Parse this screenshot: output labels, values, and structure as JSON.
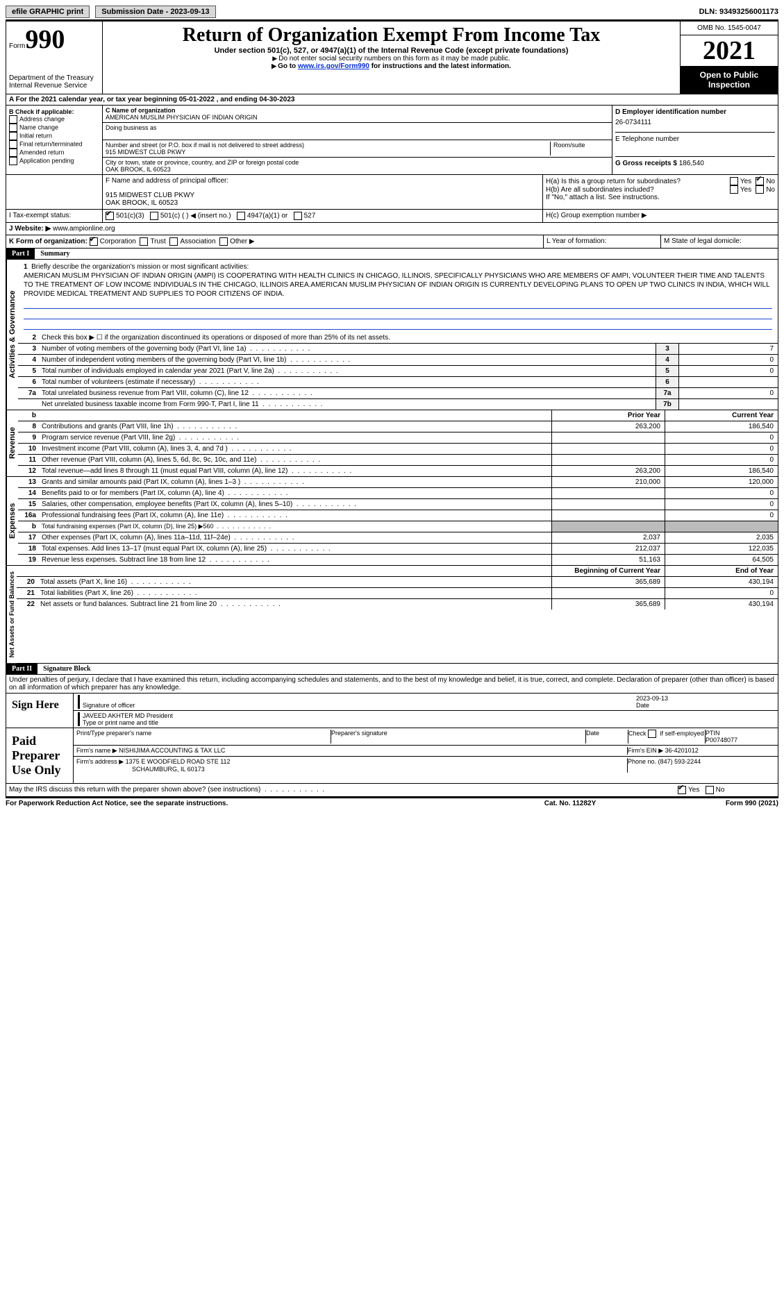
{
  "topbar": {
    "efile": "efile GRAPHIC print",
    "submission": "Submission Date - 2023-09-13",
    "dln": "DLN: 93493256001173"
  },
  "header": {
    "form_prefix": "Form",
    "form_num": "990",
    "dept": "Department of the Treasury\nInternal Revenue Service",
    "title": "Return of Organization Exempt From Income Tax",
    "subtitle": "Under section 501(c), 527, or 4947(a)(1) of the Internal Revenue Code (except private foundations)",
    "note1": "Do not enter social security numbers on this form as it may be made public.",
    "note2_pre": "Go to ",
    "note2_link": "www.irs.gov/Form990",
    "note2_post": " for instructions and the latest information.",
    "omb": "OMB No. 1545-0047",
    "year": "2021",
    "inspect": "Open to Public Inspection"
  },
  "row_a": "For the 2021 calendar year, or tax year beginning 05-01-2022    , and ending 04-30-2023",
  "box_b": {
    "label": "B Check if applicable:",
    "items": [
      "Address change",
      "Name change",
      "Initial return",
      "Final return/terminated",
      "Amended return",
      "Application pending"
    ]
  },
  "box_c": {
    "name_label": "C Name of organization",
    "name": "AMERICAN MUSLIM PHYSICIAN OF INDIAN ORIGIN",
    "dba_label": "Doing business as",
    "street_label": "Number and street (or P.O. box if mail is not delivered to street address)",
    "street": "915 MIDWEST CLUB PKWY",
    "room_label": "Room/suite",
    "city_label": "City or town, state or province, country, and ZIP or foreign postal code",
    "city": "OAK BROOK, IL  60523"
  },
  "box_d": {
    "label": "D Employer identification number",
    "value": "26-0734111"
  },
  "box_e": {
    "label": "E Telephone number"
  },
  "box_g": {
    "label": "G Gross receipts $",
    "value": "186,540"
  },
  "box_f": {
    "label": "F  Name and address of principal officer:",
    "line1": "915 MIDWEST CLUB PKWY",
    "line2": "OAK BROOK, IL  60523"
  },
  "box_h": {
    "ha": "H(a)  Is this a group return for subordinates?",
    "hb": "H(b)  Are all subordinates included?",
    "hb_note": "If \"No,\" attach a list. See instructions.",
    "hc": "H(c)  Group exemption number ▶",
    "yes": "Yes",
    "no": "No"
  },
  "row_i": {
    "label": "I   Tax-exempt status:",
    "opts": [
      "501(c)(3)",
      "501(c) (  ) ◀ (insert no.)",
      "4947(a)(1) or",
      "527"
    ]
  },
  "row_j": {
    "label": "J   Website: ▶",
    "value": "www.ampionline.org"
  },
  "row_k": {
    "label": "K Form of organization:",
    "opts": [
      "Corporation",
      "Trust",
      "Association",
      "Other ▶"
    ]
  },
  "row_l": "L Year of formation:",
  "row_m": "M State of legal domicile:",
  "part1": {
    "num": "Part I",
    "title": "Summary"
  },
  "line1": {
    "num": "1",
    "label": "Briefly describe the organization's mission or most significant activities:",
    "text": "AMERICAN MUSLIM PHYSICIAN OF INDIAN ORIGIN (AMPI) IS COOPERATING WITH HEALTH CLINICS IN CHICAGO, ILLINOIS, SPECIFICALLY PHYSICIANS WHO ARE MEMBERS OF AMPI, VOLUNTEER THEIR TIME AND TALENTS TO THE TREATMENT OF LOW INCOME INDIVIDUALS IN THE CHICAGO, ILLINOIS AREA.AMERICAN MUSLIM PHYSICIAN OF INDIAN ORIGIN IS CURRENTLY DEVELOPING PLANS TO OPEN UP TWO CLINICS IN INDIA, WHICH WILL PROVIDE MEDICAL TREATMENT AND SUPPLIES TO POOR CITIZENS OF INDIA."
  },
  "line2": "Check this box ▶ ☐  if the organization discontinued its operations or disposed of more than 25% of its net assets.",
  "gov_lines": [
    {
      "n": "3",
      "d": "Number of voting members of the governing body (Part VI, line 1a)",
      "box": "3",
      "v": "7"
    },
    {
      "n": "4",
      "d": "Number of independent voting members of the governing body (Part VI, line 1b)",
      "box": "4",
      "v": "0"
    },
    {
      "n": "5",
      "d": "Total number of individuals employed in calendar year 2021 (Part V, line 2a)",
      "box": "5",
      "v": "0"
    },
    {
      "n": "6",
      "d": "Total number of volunteers (estimate if necessary)",
      "box": "6",
      "v": ""
    },
    {
      "n": "7a",
      "d": "Total unrelated business revenue from Part VIII, column (C), line 12",
      "box": "7a",
      "v": "0"
    },
    {
      "n": "",
      "d": "Net unrelated business taxable income from Form 990-T, Part I, line 11",
      "box": "7b",
      "v": ""
    }
  ],
  "rev_hdr": {
    "b": "b",
    "prior": "Prior Year",
    "current": "Current Year"
  },
  "rev_lines": [
    {
      "n": "8",
      "d": "Contributions and grants (Part VIII, line 1h)",
      "p": "263,200",
      "c": "186,540"
    },
    {
      "n": "9",
      "d": "Program service revenue (Part VIII, line 2g)",
      "p": "",
      "c": "0"
    },
    {
      "n": "10",
      "d": "Investment income (Part VIII, column (A), lines 3, 4, and 7d )",
      "p": "",
      "c": "0"
    },
    {
      "n": "11",
      "d": "Other revenue (Part VIII, column (A), lines 5, 6d, 8c, 9c, 10c, and 11e)",
      "p": "",
      "c": "0"
    },
    {
      "n": "12",
      "d": "Total revenue—add lines 8 through 11 (must equal Part VIII, column (A), line 12)",
      "p": "263,200",
      "c": "186,540"
    }
  ],
  "exp_lines": [
    {
      "n": "13",
      "d": "Grants and similar amounts paid (Part IX, column (A), lines 1–3 )",
      "p": "210,000",
      "c": "120,000"
    },
    {
      "n": "14",
      "d": "Benefits paid to or for members (Part IX, column (A), line 4)",
      "p": "",
      "c": "0"
    },
    {
      "n": "15",
      "d": "Salaries, other compensation, employee benefits (Part IX, column (A), lines 5–10)",
      "p": "",
      "c": "0"
    },
    {
      "n": "16a",
      "d": "Professional fundraising fees (Part IX, column (A), line 11e)",
      "p": "",
      "c": "0"
    },
    {
      "n": "b",
      "d": "Total fundraising expenses (Part IX, column (D), line 25) ▶560",
      "p": "SHADE",
      "c": "SHADE"
    },
    {
      "n": "17",
      "d": "Other expenses (Part IX, column (A), lines 11a–11d, 11f–24e)",
      "p": "2,037",
      "c": "2,035"
    },
    {
      "n": "18",
      "d": "Total expenses. Add lines 13–17 (must equal Part IX, column (A), line 25)",
      "p": "212,037",
      "c": "122,035"
    },
    {
      "n": "19",
      "d": "Revenue less expenses. Subtract line 18 from line 12",
      "p": "51,163",
      "c": "64,505"
    }
  ],
  "net_hdr": {
    "prior": "Beginning of Current Year",
    "current": "End of Year"
  },
  "net_lines": [
    {
      "n": "20",
      "d": "Total assets (Part X, line 16)",
      "p": "365,689",
      "c": "430,194"
    },
    {
      "n": "21",
      "d": "Total liabilities (Part X, line 26)",
      "p": "",
      "c": "0"
    },
    {
      "n": "22",
      "d": "Net assets or fund balances. Subtract line 21 from line 20",
      "p": "365,689",
      "c": "430,194"
    }
  ],
  "vtabs": {
    "gov": "Activities & Governance",
    "rev": "Revenue",
    "exp": "Expenses",
    "net": "Net Assets or Fund Balances"
  },
  "part2": {
    "num": "Part II",
    "title": "Signature Block"
  },
  "penalty": "Under penalties of perjury, I declare that I have examined this return, including accompanying schedules and statements, and to the best of my knowledge and belief, it is true, correct, and complete. Declaration of preparer (other than officer) is based on all information of which preparer has any knowledge.",
  "sign": {
    "here": "Sign Here",
    "sig_officer": "Signature of officer",
    "date": "Date",
    "date_val": "2023-09-13",
    "name": "JAVEED AKHTER MD  President",
    "name_label": "Type or print name and title"
  },
  "paid": {
    "title": "Paid Preparer Use Only",
    "col1": "Print/Type preparer's name",
    "col2": "Preparer's signature",
    "col3": "Date",
    "col4_pre": "Check",
    "col4_post": "if self-employed",
    "col5_label": "PTIN",
    "col5": "P00748077",
    "firm_label": "Firm's name    ▶",
    "firm": "NISHIJIMA ACCOUNTING & TAX LLC",
    "ein_label": "Firm's EIN ▶",
    "ein": "36-4201012",
    "addr_label": "Firm's address ▶",
    "addr": "1375 E WOODFIELD ROAD STE 112",
    "addr2": "SCHAUMBURG, IL  60173",
    "phone_label": "Phone no.",
    "phone": "(847) 593-2244"
  },
  "discuss": "May the IRS discuss this return with the preparer shown above? (see instructions)",
  "footer": {
    "left": "For Paperwork Reduction Act Notice, see the separate instructions.",
    "mid": "Cat. No. 11282Y",
    "right": "Form 990 (2021)"
  },
  "labels": {
    "yes": "Yes",
    "no": "No"
  }
}
